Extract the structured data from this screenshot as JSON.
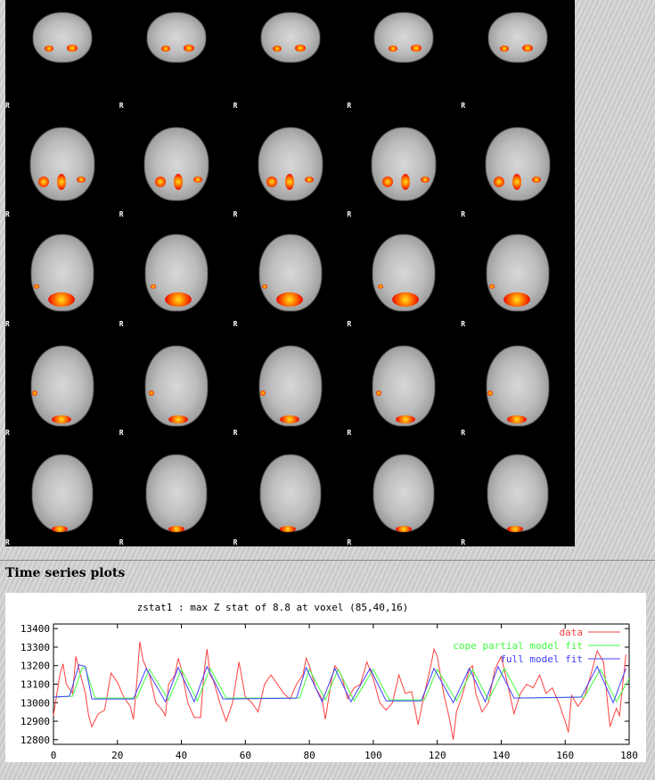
{
  "slices": {
    "orientation_label": "R",
    "rows": 5,
    "cols": 5
  },
  "section": {
    "heading": "Time series plots"
  },
  "chart_data": {
    "type": "line",
    "title": "zstat1 : max Z stat of 8.8 at voxel (85,40,16)",
    "xlim": [
      0,
      180
    ],
    "ylim": [
      12775,
      13425
    ],
    "xticks": [
      0,
      20,
      40,
      60,
      80,
      100,
      120,
      140,
      160,
      180
    ],
    "yticks": [
      12800,
      12900,
      13000,
      13100,
      13200,
      13300,
      13400
    ],
    "legend_position": "top-right",
    "series": [
      {
        "name": "data",
        "color": "#ff4040",
        "points": [
          [
            0,
            12930
          ],
          [
            2,
            13150
          ],
          [
            3,
            13210
          ],
          [
            4,
            13100
          ],
          [
            6,
            13050
          ],
          [
            7,
            13250
          ],
          [
            8,
            13180
          ],
          [
            10,
            13050
          ],
          [
            11,
            12930
          ],
          [
            12,
            12870
          ],
          [
            14,
            12940
          ],
          [
            16,
            12960
          ],
          [
            18,
            13160
          ],
          [
            20,
            13110
          ],
          [
            22,
            13030
          ],
          [
            24,
            12980
          ],
          [
            25,
            12910
          ],
          [
            26,
            13100
          ],
          [
            27,
            13330
          ],
          [
            28,
            13230
          ],
          [
            30,
            13150
          ],
          [
            32,
            13000
          ],
          [
            34,
            12960
          ],
          [
            35,
            12930
          ],
          [
            36,
            13100
          ],
          [
            38,
            13150
          ],
          [
            39,
            13240
          ],
          [
            40,
            13180
          ],
          [
            42,
            13000
          ],
          [
            44,
            12920
          ],
          [
            46,
            12920
          ],
          [
            47,
            13150
          ],
          [
            48,
            13290
          ],
          [
            49,
            13150
          ],
          [
            50,
            13120
          ],
          [
            52,
            13000
          ],
          [
            54,
            12900
          ],
          [
            56,
            13000
          ],
          [
            58,
            13220
          ],
          [
            60,
            13030
          ],
          [
            62,
            13000
          ],
          [
            64,
            12950
          ],
          [
            66,
            13100
          ],
          [
            68,
            13150
          ],
          [
            70,
            13100
          ],
          [
            72,
            13050
          ],
          [
            74,
            13020
          ],
          [
            76,
            13100
          ],
          [
            78,
            13150
          ],
          [
            79,
            13240
          ],
          [
            80,
            13200
          ],
          [
            82,
            13080
          ],
          [
            84,
            13020
          ],
          [
            85,
            12910
          ],
          [
            87,
            13130
          ],
          [
            88,
            13200
          ],
          [
            90,
            13150
          ],
          [
            92,
            13020
          ],
          [
            94,
            13080
          ],
          [
            96,
            13100
          ],
          [
            98,
            13220
          ],
          [
            100,
            13130
          ],
          [
            102,
            13000
          ],
          [
            104,
            12960
          ],
          [
            106,
            13000
          ],
          [
            108,
            13150
          ],
          [
            110,
            13050
          ],
          [
            112,
            13060
          ],
          [
            114,
            12880
          ],
          [
            116,
            13050
          ],
          [
            118,
            13200
          ],
          [
            119,
            13290
          ],
          [
            120,
            13250
          ],
          [
            122,
            13050
          ],
          [
            124,
            12900
          ],
          [
            125,
            12800
          ],
          [
            126,
            12950
          ],
          [
            128,
            13050
          ],
          [
            130,
            13180
          ],
          [
            131,
            13200
          ],
          [
            132,
            13050
          ],
          [
            134,
            12950
          ],
          [
            136,
            13000
          ],
          [
            138,
            13180
          ],
          [
            140,
            13250
          ],
          [
            142,
            13100
          ],
          [
            144,
            12940
          ],
          [
            146,
            13050
          ],
          [
            148,
            13100
          ],
          [
            150,
            13080
          ],
          [
            152,
            13150
          ],
          [
            154,
            13050
          ],
          [
            156,
            13080
          ],
          [
            158,
            13000
          ],
          [
            160,
            12900
          ],
          [
            161,
            12840
          ],
          [
            162,
            13040
          ],
          [
            164,
            12980
          ],
          [
            166,
            13030
          ],
          [
            168,
            13150
          ],
          [
            170,
            13280
          ],
          [
            172,
            13220
          ],
          [
            174,
            12870
          ],
          [
            176,
            12970
          ],
          [
            177,
            12930
          ],
          [
            178,
            13100
          ],
          [
            179,
            13260
          ]
        ]
      },
      {
        "name": "cope partial model fit",
        "color": "#40ff40",
        "points": [
          [
            0,
            13030
          ],
          [
            6,
            13035
          ],
          [
            9,
            13190
          ],
          [
            10,
            13185
          ],
          [
            13,
            13025
          ],
          [
            26,
            13025
          ],
          [
            30,
            13180
          ],
          [
            36,
            13015
          ],
          [
            40,
            13180
          ],
          [
            45,
            13010
          ],
          [
            49,
            13185
          ],
          [
            54,
            13025
          ],
          [
            77,
            13025
          ],
          [
            80,
            13180
          ],
          [
            85,
            13015
          ],
          [
            89,
            13180
          ],
          [
            94,
            13010
          ],
          [
            100,
            13180
          ],
          [
            105,
            13015
          ],
          [
            116,
            13015
          ],
          [
            120,
            13180
          ],
          [
            126,
            13010
          ],
          [
            131,
            13180
          ],
          [
            136,
            13015
          ],
          [
            141,
            13185
          ],
          [
            146,
            13025
          ],
          [
            166,
            13030
          ],
          [
            171,
            13180
          ],
          [
            176,
            13005
          ],
          [
            180,
            13130
          ]
        ]
      },
      {
        "name": "full model fit",
        "color": "#4040ff",
        "points": [
          [
            0,
            13030
          ],
          [
            5,
            13035
          ],
          [
            8,
            13205
          ],
          [
            10,
            13195
          ],
          [
            12,
            13020
          ],
          [
            25,
            13020
          ],
          [
            29,
            13185
          ],
          [
            35,
            13005
          ],
          [
            39,
            13190
          ],
          [
            44,
            13005
          ],
          [
            48,
            13195
          ],
          [
            53,
            13020
          ],
          [
            76,
            13025
          ],
          [
            79,
            13190
          ],
          [
            84,
            13005
          ],
          [
            88,
            13185
          ],
          [
            93,
            13005
          ],
          [
            99,
            13185
          ],
          [
            104,
            13010
          ],
          [
            115,
            13010
          ],
          [
            119,
            13185
          ],
          [
            125,
            13000
          ],
          [
            130,
            13185
          ],
          [
            135,
            13005
          ],
          [
            139,
            13195
          ],
          [
            144,
            13025
          ],
          [
            165,
            13030
          ],
          [
            170,
            13195
          ],
          [
            175,
            13000
          ],
          [
            179,
            13185
          ]
        ]
      }
    ]
  }
}
